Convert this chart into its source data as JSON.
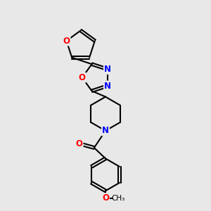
{
  "bg_color": "#e8e8e8",
  "bond_color": "#000000",
  "atom_colors": {
    "O": "#ff0000",
    "N": "#0000ff"
  },
  "bond_width": 1.5,
  "fig_bg": "#e8e8e8"
}
